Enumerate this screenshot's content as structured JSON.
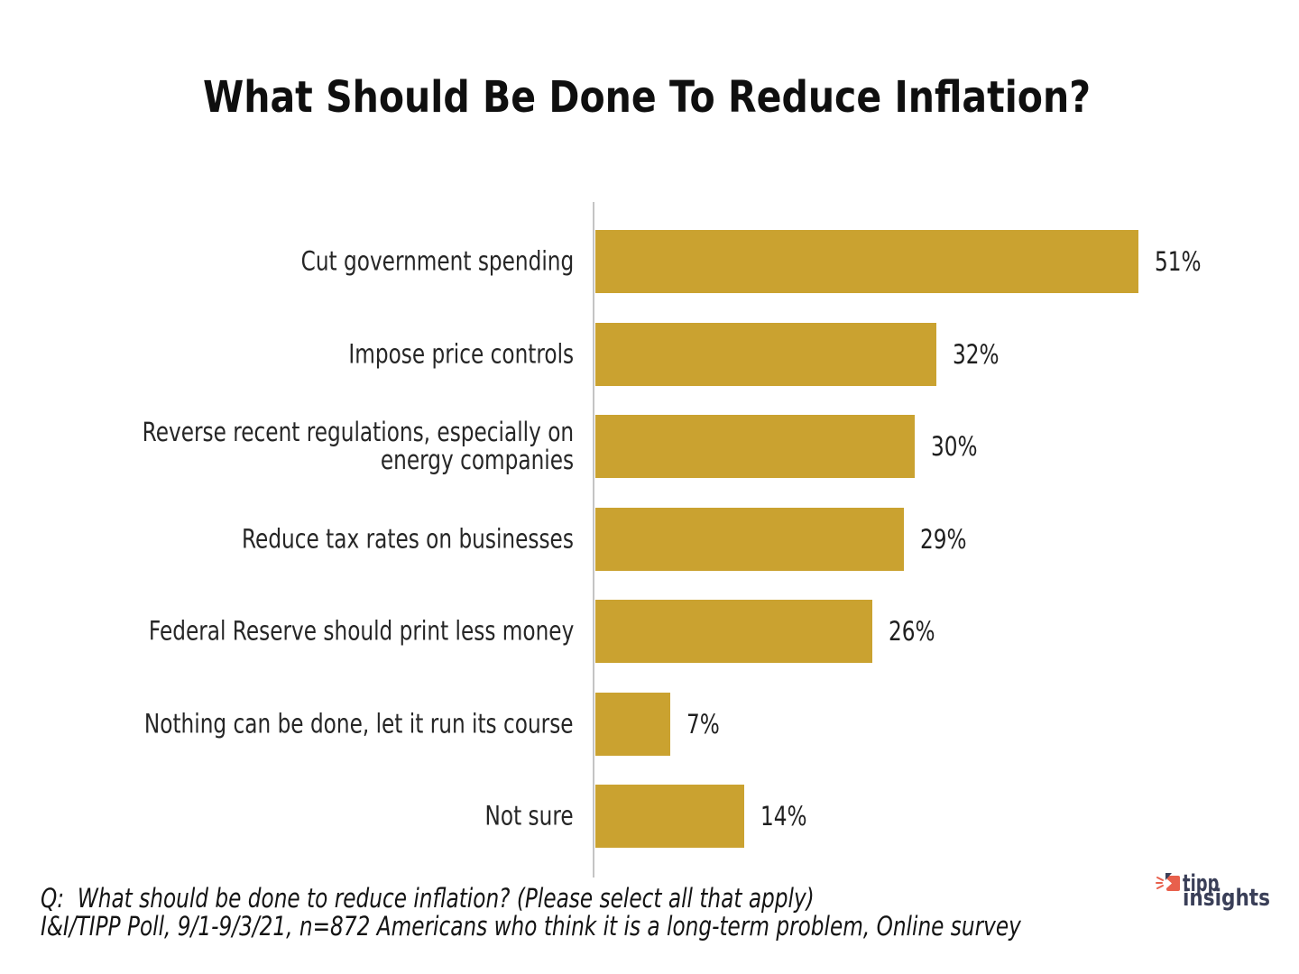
{
  "title": "What Should Be Done To Reduce Inflation?",
  "chart_data": {
    "type": "bar",
    "orientation": "horizontal",
    "title": "What Should Be Done To Reduce Inflation?",
    "categories": [
      "Cut government spending",
      "Impose price controls",
      "Reverse recent regulations, especially on energy companies",
      "Reduce tax rates on businesses",
      "Federal Reserve should print less money",
      "Nothing can be done, let it run its course",
      "Not sure"
    ],
    "values": [
      51,
      32,
      30,
      29,
      26,
      7,
      14
    ],
    "rows": [
      {
        "label": "Cut government spending",
        "value": 51,
        "display": "51%"
      },
      {
        "label": "Impose price controls",
        "value": 32,
        "display": "32%"
      },
      {
        "label": "Reverse recent regulations, especially on\nenergy companies",
        "value": 30,
        "display": "30%"
      },
      {
        "label": "Reduce tax rates on businesses",
        "value": 29,
        "display": "29%"
      },
      {
        "label": "Federal Reserve should print less money",
        "value": 26,
        "display": "26%"
      },
      {
        "label": "Nothing can be done, let it run its course",
        "value": 7,
        "display": "7%"
      },
      {
        "label": "Not sure",
        "value": 14,
        "display": "14%"
      }
    ],
    "xlim": [
      0,
      51
    ],
    "bar_color": "#caa230",
    "axis_color": "#c4c4c4",
    "grid": false,
    "legend": false
  },
  "footer": {
    "question_line": "Q:  What should be done to reduce inflation? (Please select all that apply)",
    "source_line": "I&I/TIPP Poll, 9/1-9/3/21, n=872 Americans who think it is a long-term problem, Online survey"
  },
  "logo": {
    "word_top": "tipp",
    "word_bottom": "insights",
    "navy": "#3a3f58",
    "red": "#e8604c"
  }
}
